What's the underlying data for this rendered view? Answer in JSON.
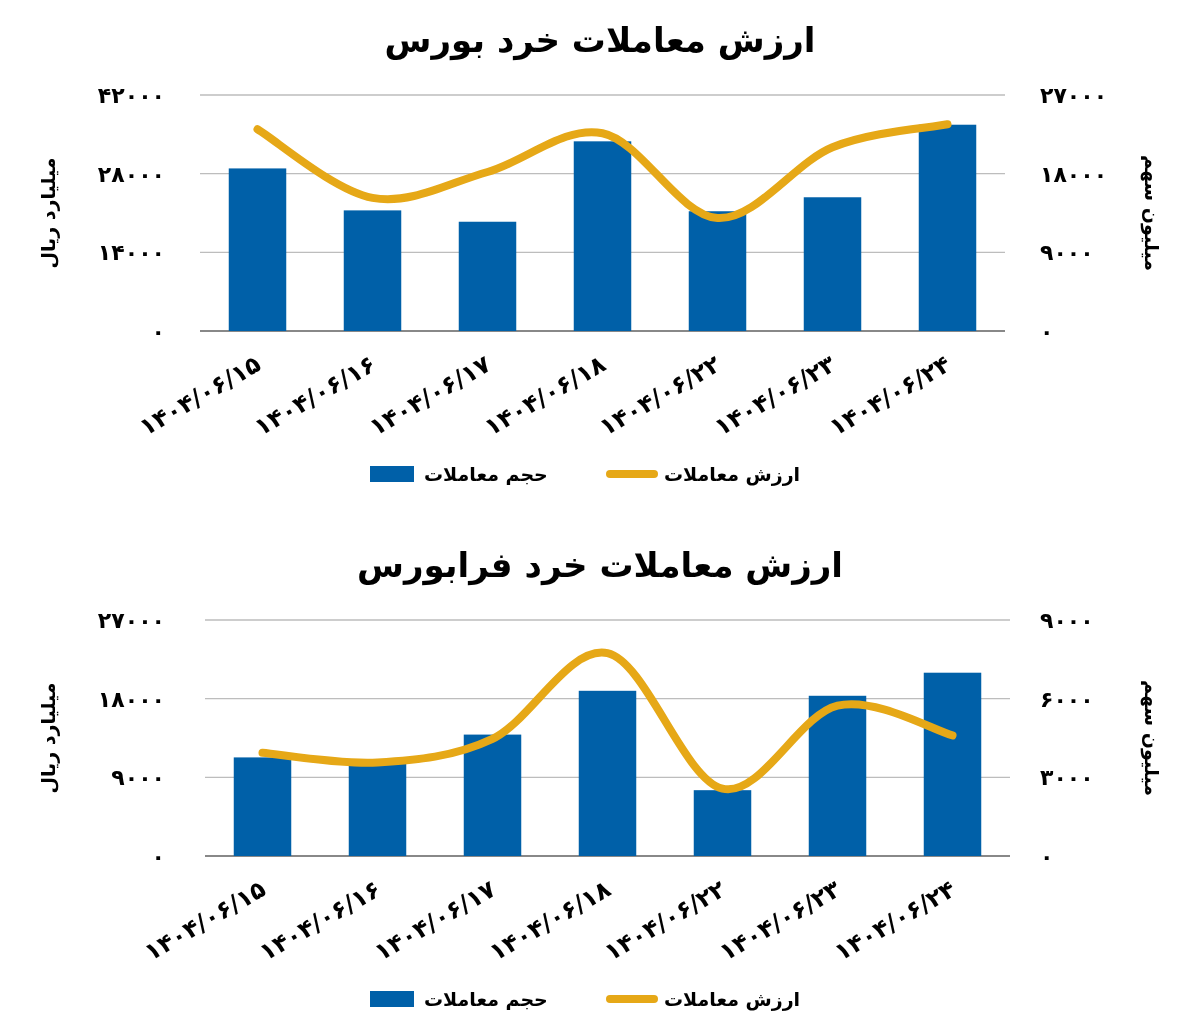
{
  "chart_data": [
    {
      "type": "bar",
      "title": "ارزش معاملات خرد بورس",
      "ylabel": "میلیارد ریال",
      "y2label": "میلیون سهم",
      "categories": [
        "۱۴۰۴/۰۶/۱۵",
        "۱۴۰۴/۰۶/۱۶",
        "۱۴۰۴/۰۶/۱۷",
        "۱۴۰۴/۰۶/۱۸",
        "۱۴۰۴/۰۶/۲۲",
        "۱۴۰۴/۰۶/۲۳",
        "۱۴۰۴/۰۶/۲۴"
      ],
      "series": [
        {
          "name": "حجم معاملات",
          "type": "bar",
          "axis": "y2",
          "color": "#0060a8",
          "values": [
            18600,
            13800,
            12500,
            21700,
            13700,
            15300,
            23600
          ]
        },
        {
          "name": "ارزش معاملات",
          "type": "line",
          "color": "#e6a817",
          "values": [
            35900,
            23700,
            28300,
            35200,
            20100,
            32700,
            36800
          ]
        }
      ],
      "ylim": [
        0,
        42000
      ],
      "yticks": [
        {
          "value": 0,
          "label": "۰"
        },
        {
          "value": 14000,
          "label": "۱۴۰۰۰"
        },
        {
          "value": 28000,
          "label": "۲۸۰۰۰"
        },
        {
          "value": 42000,
          "label": "۴۲۰۰۰"
        }
      ],
      "y2lim": [
        0,
        27000
      ],
      "y2ticks": [
        {
          "value": 0,
          "label": "۰"
        },
        {
          "value": 9000,
          "label": "۹۰۰۰"
        },
        {
          "value": 18000,
          "label": "۱۸۰۰۰"
        },
        {
          "value": 27000,
          "label": "۲۷۰۰۰"
        }
      ],
      "grid": "y",
      "legend": "bottom"
    },
    {
      "type": "bar",
      "title": "ارزش معاملات خرد فرابورس",
      "ylabel": "میلیارد ریال",
      "y2label": "میلیون سهم",
      "categories": [
        "۱۴۰۴/۰۶/۱۵",
        "۱۴۰۴/۰۶/۱۶",
        "۱۴۰۴/۰۶/۱۷",
        "۱۴۰۴/۰۶/۱۸",
        "۱۴۰۴/۰۶/۲۲",
        "۱۴۰۴/۰۶/۲۳",
        "۱۴۰۴/۰۶/۲۴"
      ],
      "series": [
        {
          "name": "حجم معاملات",
          "type": "bar",
          "axis": "y2",
          "color": "#0060a8",
          "values": [
            3760,
            3530,
            4630,
            6300,
            2510,
            6110,
            6990
          ]
        },
        {
          "name": "ارزش معاملات",
          "type": "line",
          "color": "#e6a817",
          "values": [
            11800,
            10700,
            13400,
            23200,
            7700,
            17200,
            13800
          ]
        }
      ],
      "ylim": [
        0,
        27000
      ],
      "yticks": [
        {
          "value": 0,
          "label": "۰"
        },
        {
          "value": 9000,
          "label": "۹۰۰۰"
        },
        {
          "value": 18000,
          "label": "۱۸۰۰۰"
        },
        {
          "value": 27000,
          "label": "۲۷۰۰۰"
        }
      ],
      "y2lim": [
        0,
        9000
      ],
      "y2ticks": [
        {
          "value": 0,
          "label": "۰"
        },
        {
          "value": 3000,
          "label": "۳۰۰۰"
        },
        {
          "value": 6000,
          "label": "۶۰۰۰"
        },
        {
          "value": 9000,
          "label": "۹۰۰۰"
        }
      ],
      "grid": "y",
      "legend": "bottom"
    }
  ]
}
